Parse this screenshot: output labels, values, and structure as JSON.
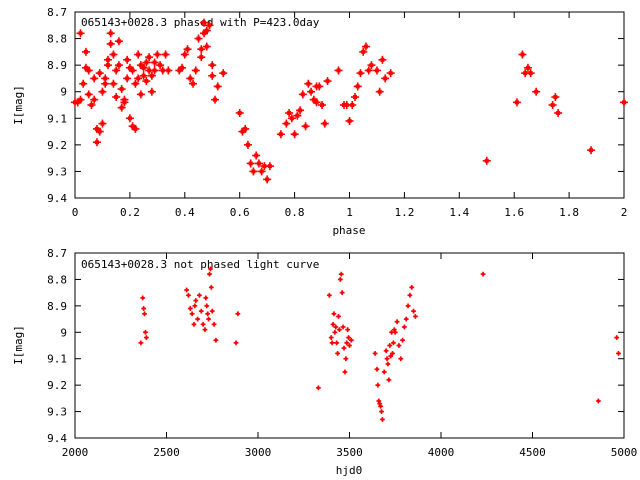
{
  "chart_data": [
    {
      "type": "scatter",
      "title": "065143+0028.3 phased with P=423.0day",
      "xlabel": "phase",
      "ylabel": "I[mag]",
      "xlim": [
        0,
        2
      ],
      "ylim": [
        9.4,
        8.7
      ],
      "y_inverted": true,
      "grid": false,
      "xticks": [
        "0",
        "0.2",
        "0.4",
        "0.6",
        "0.8",
        "1",
        "1.2",
        "1.4",
        "1.6",
        "1.8",
        "2"
      ],
      "yticks": [
        "8.7",
        "8.8",
        "8.9",
        "9",
        "9.1",
        "9.2",
        "9.3",
        "9.4"
      ],
      "marker_color": "#ff0000",
      "series": [
        {
          "x": [
            0.0,
            0.01,
            0.02,
            0.02,
            0.03,
            0.04,
            0.04,
            0.05,
            0.05,
            0.06,
            0.07,
            0.07,
            0.08,
            0.08,
            0.09,
            0.09,
            0.1,
            0.1,
            0.11,
            0.11,
            0.12,
            0.12,
            0.13,
            0.13,
            0.14,
            0.14,
            0.15,
            0.15,
            0.16,
            0.16,
            0.17,
            0.17,
            0.18,
            0.18,
            0.19,
            0.19,
            0.2,
            0.2,
            0.21,
            0.21,
            0.22,
            0.22,
            0.23,
            0.23,
            0.24,
            0.24,
            0.25,
            0.25,
            0.26,
            0.26,
            0.27,
            0.27,
            0.28,
            0.28,
            0.29,
            0.29,
            0.3,
            0.31,
            0.32,
            0.33,
            0.34,
            0.38,
            0.39,
            0.4,
            0.41,
            0.42,
            0.43,
            0.44,
            0.45,
            0.46,
            0.46,
            0.47,
            0.47,
            0.48,
            0.48,
            0.49,
            0.5,
            0.5,
            0.51,
            0.52,
            0.54,
            0.6,
            0.61,
            0.62,
            0.63,
            0.64,
            0.65,
            0.66,
            0.67,
            0.68,
            0.69,
            0.7,
            0.71,
            0.75,
            0.77,
            0.78,
            0.79,
            0.8,
            0.81,
            0.82,
            0.83,
            0.84,
            0.85,
            0.86,
            0.87,
            0.88,
            0.88,
            0.89,
            0.9,
            0.91,
            0.92,
            0.96,
            0.98,
            0.99,
            1.0,
            1.01,
            1.02,
            1.03,
            1.04,
            1.05,
            1.06,
            1.07,
            1.08,
            1.1,
            1.11,
            1.12,
            1.13,
            1.15,
            1.5,
            1.61,
            1.63,
            1.64,
            1.65,
            1.66,
            1.68,
            1.74,
            1.75,
            1.76,
            1.88,
            2.0
          ],
          "y": [
            9.04,
            9.04,
            8.78,
            9.03,
            8.97,
            8.91,
            8.85,
            9.01,
            8.92,
            9.05,
            9.03,
            8.95,
            9.14,
            9.19,
            9.15,
            8.93,
            9.12,
            9.0,
            8.97,
            8.95,
            8.9,
            8.88,
            8.82,
            8.78,
            8.86,
            8.97,
            9.02,
            8.92,
            8.9,
            8.81,
            8.99,
            9.06,
            9.04,
            9.03,
            8.95,
            8.88,
            8.91,
            9.1,
            9.13,
            8.92,
            8.97,
            9.14,
            8.86,
            8.95,
            8.9,
            9.01,
            8.94,
            8.91,
            8.89,
            8.96,
            8.92,
            8.87,
            8.94,
            9.0,
            8.89,
            8.92,
            8.86,
            8.9,
            8.92,
            8.86,
            8.92,
            8.92,
            8.91,
            8.86,
            8.84,
            8.95,
            8.97,
            8.92,
            8.8,
            8.87,
            8.84,
            8.78,
            8.74,
            8.83,
            8.77,
            8.75,
            8.9,
            8.94,
            9.03,
            8.98,
            8.93,
            9.08,
            9.15,
            9.14,
            9.2,
            9.27,
            9.3,
            9.24,
            9.27,
            9.3,
            9.28,
            9.33,
            9.28,
            9.16,
            9.12,
            9.08,
            9.1,
            9.16,
            9.09,
            9.07,
            9.01,
            9.13,
            8.97,
            9.0,
            9.03,
            8.98,
            9.04,
            8.98,
            9.05,
            9.12,
            8.96,
            8.92,
            9.05,
            9.05,
            9.11,
            9.05,
            9.02,
            8.98,
            8.93,
            8.85,
            8.83,
            8.92,
            8.9,
            8.92,
            9.0,
            8.88,
            8.95,
            8.93,
            9.26,
            9.04,
            8.86,
            8.93,
            8.91,
            8.93,
            9.0,
            9.05,
            9.02,
            9.08,
            9.22,
            9.04
          ]
        }
      ]
    },
    {
      "type": "scatter",
      "title": "065143+0028.3 not phased light curve",
      "xlabel": "hjd0",
      "ylabel": "I[mag]",
      "xlim": [
        2000,
        5000
      ],
      "ylim": [
        9.4,
        8.7
      ],
      "y_inverted": true,
      "grid": false,
      "xticks": [
        "2000",
        "2500",
        "3000",
        "3500",
        "4000",
        "4500",
        "5000"
      ],
      "yticks": [
        "8.7",
        "8.8",
        "8.9",
        "9",
        "9.1",
        "9.2",
        "9.3",
        "9.4"
      ],
      "marker_color": "#ff0000",
      "series": [
        {
          "x": [
            2360,
            2370,
            2375,
            2380,
            2385,
            2390,
            2610,
            2620,
            2630,
            2640,
            2650,
            2655,
            2660,
            2670,
            2680,
            2690,
            2700,
            2710,
            2715,
            2720,
            2725,
            2730,
            2735,
            2740,
            2745,
            2750,
            2760,
            2770,
            2880,
            2890,
            3330,
            3390,
            3400,
            3405,
            3410,
            3415,
            3420,
            3425,
            3430,
            3435,
            3440,
            3445,
            3450,
            3455,
            3460,
            3465,
            3470,
            3475,
            3480,
            3485,
            3490,
            3495,
            3500,
            3510,
            3640,
            3650,
            3655,
            3660,
            3665,
            3670,
            3675,
            3680,
            3690,
            3700,
            3705,
            3710,
            3715,
            3720,
            3725,
            3730,
            3735,
            3740,
            3745,
            3750,
            3760,
            3770,
            3780,
            3790,
            3800,
            3810,
            3820,
            3830,
            3840,
            3850,
            3860,
            4230,
            4860,
            4960,
            4970
          ],
          "y": [
            9.04,
            8.87,
            8.91,
            8.93,
            9.0,
            9.02,
            8.84,
            8.86,
            8.91,
            8.93,
            8.97,
            8.9,
            8.88,
            8.95,
            8.86,
            8.92,
            8.97,
            8.99,
            8.87,
            8.9,
            8.93,
            8.95,
            8.78,
            8.76,
            8.83,
            8.92,
            8.97,
            9.03,
            9.04,
            8.93,
            9.21,
            8.86,
            9.02,
            9.04,
            8.97,
            8.93,
            9.0,
            8.98,
            9.04,
            9.08,
            8.94,
            8.99,
            8.8,
            8.78,
            8.85,
            8.98,
            9.06,
            9.15,
            9.1,
            9.04,
            8.99,
            9.02,
            9.05,
            9.03,
            9.08,
            9.14,
            9.2,
            9.26,
            9.27,
            9.28,
            9.3,
            9.33,
            9.15,
            9.07,
            9.1,
            9.12,
            9.18,
            9.05,
            9.09,
            9.0,
            9.08,
            9.04,
            8.99,
            9.0,
            8.96,
            9.05,
            9.1,
            9.03,
            8.98,
            8.95,
            8.9,
            8.86,
            8.83,
            8.92,
            8.94,
            8.78,
            9.26,
            9.02,
            9.08
          ]
        }
      ]
    }
  ]
}
